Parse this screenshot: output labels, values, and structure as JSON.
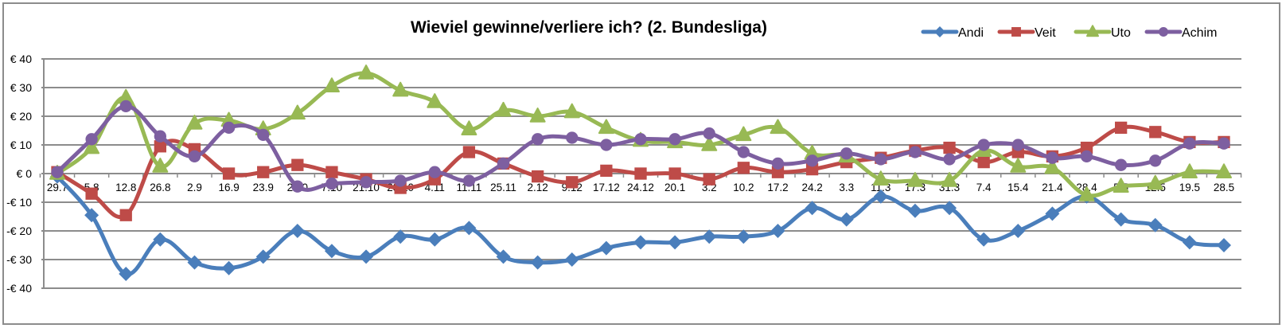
{
  "chart_data": {
    "type": "line",
    "title": "Wieviel gewinne/verliere ich? (2. Bundesliga)",
    "xlabel": "",
    "ylabel": "",
    "ylim": [
      -40,
      40
    ],
    "yticks": [
      40,
      30,
      20,
      10,
      0,
      -10,
      -20,
      -30,
      -40
    ],
    "ytick_labels": [
      "€ 40",
      "€ 30",
      "€ 20",
      "€ 10",
      "€ 0",
      "-€ 10",
      "-€ 20",
      "-€ 30",
      "-€ 40"
    ],
    "grid": true,
    "smoothed": true,
    "legend_position": "top-right",
    "categories": [
      "29.7",
      "5.8",
      "12.8",
      "26.8",
      "2.9",
      "16.9",
      "23.9",
      "2.10",
      "7.10",
      "21.10",
      "28.10",
      "4.11",
      "11.11",
      "25.11",
      "2.12",
      "9.12",
      "17.12",
      "24.12",
      "20.1",
      "3.2",
      "10.2",
      "17.2",
      "24.2",
      "3.3",
      "11.3",
      "17.3",
      "31.3",
      "7.4",
      "15.4",
      "21.4",
      "28.4",
      "5.5",
      "12.5",
      "19.5",
      "28.5"
    ],
    "series": [
      {
        "name": "Andi",
        "color": "#4a7ebb",
        "marker": "diamond",
        "values": [
          -1,
          -14.5,
          -35,
          -23,
          -31,
          -33,
          -29,
          -20,
          -27,
          -29,
          -22,
          -23,
          -19,
          -29,
          -31,
          -30,
          -26,
          -24,
          -24,
          -22,
          -22,
          -20,
          -12,
          -16,
          -8,
          -13,
          -12,
          -23,
          -20,
          -14,
          -8,
          -16,
          -18,
          -24,
          -25
        ]
      },
      {
        "name": "Veit",
        "color": "#be4b48",
        "marker": "square",
        "values": [
          0.5,
          -7,
          -14.5,
          9.5,
          8.5,
          0,
          0.5,
          3,
          0.5,
          -2,
          -5,
          -2,
          7.5,
          3.5,
          -1,
          -3,
          1,
          0,
          0,
          -2,
          2,
          0.5,
          1.5,
          4,
          5.5,
          8,
          9,
          4,
          7.5,
          6,
          9,
          16,
          14.5,
          11,
          11
        ]
      },
      {
        "name": "Uto",
        "color": "#98b954",
        "marker": "triangle",
        "values": [
          0,
          9,
          26.5,
          2.5,
          17.5,
          18.5,
          15.5,
          21,
          30.5,
          35,
          29,
          25,
          15.5,
          22,
          20,
          21.5,
          16,
          11.5,
          11,
          10,
          13.5,
          16,
          7,
          6,
          -2,
          -2.5,
          -2.5,
          8,
          2.5,
          2,
          -7.5,
          -4.5,
          -3.5,
          0.5,
          0.5
        ]
      },
      {
        "name": "Achim",
        "color": "#7d5fa0",
        "marker": "circle",
        "values": [
          0.5,
          12,
          23.5,
          13,
          6,
          16,
          13.5,
          -4.5,
          -3.5,
          -3,
          -2.5,
          0.5,
          -2.5,
          3.5,
          12,
          12.5,
          10,
          12,
          12,
          14,
          7.5,
          3.5,
          4.5,
          7,
          5,
          7.5,
          5,
          10,
          10,
          5.5,
          6,
          3,
          4.5,
          10.5,
          10.5
        ]
      }
    ]
  }
}
